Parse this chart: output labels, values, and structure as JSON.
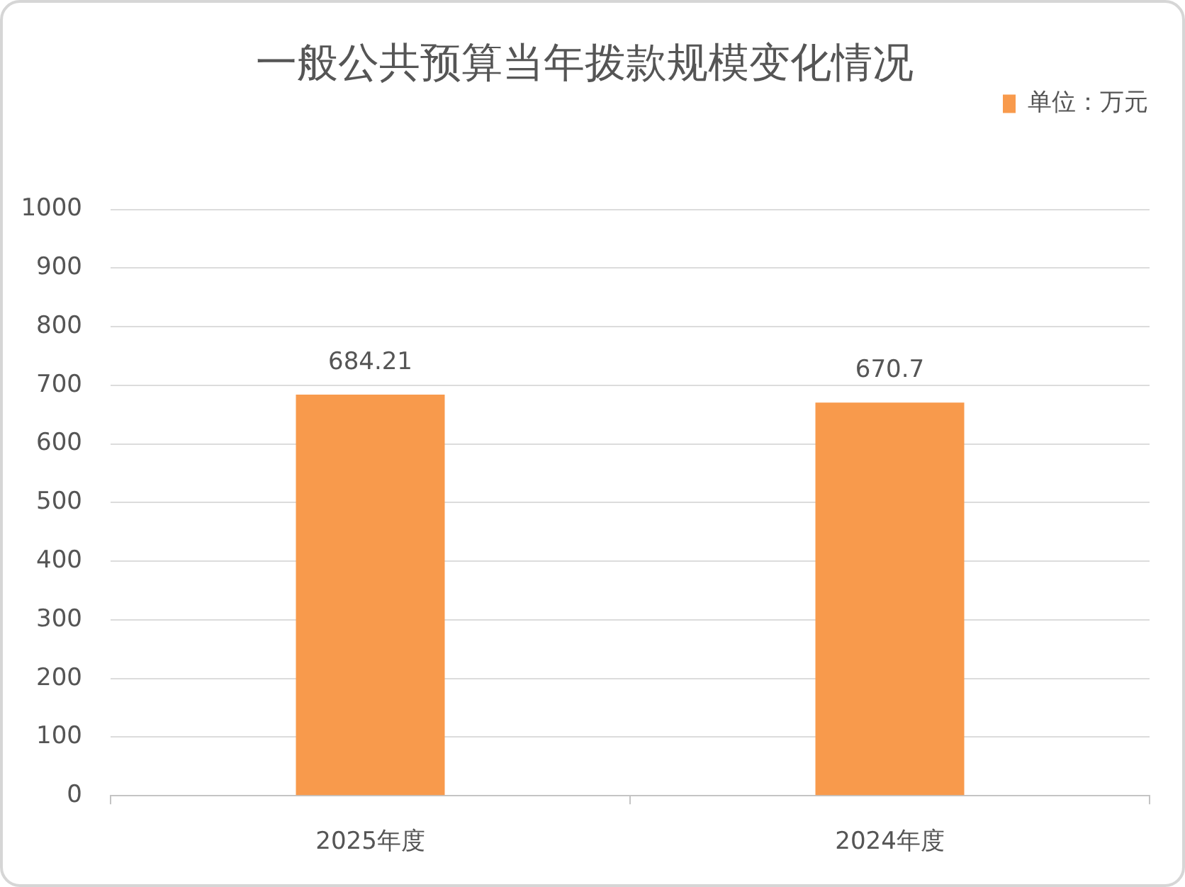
{
  "chart_data": {
    "type": "bar",
    "title": "一般公共预算当年拨款规模变化情况",
    "categories": [
      "2025年度",
      "2024年度"
    ],
    "series": [
      {
        "name": "单位：万元",
        "color": "#f89a4c",
        "values": [
          684.21,
          670.7
        ]
      }
    ],
    "ylim": [
      0,
      1000
    ],
    "yticks": [
      0,
      100,
      200,
      300,
      400,
      500,
      600,
      700,
      800,
      900,
      1000
    ],
    "grid": "y",
    "legend": "top right",
    "data_labels": true
  }
}
